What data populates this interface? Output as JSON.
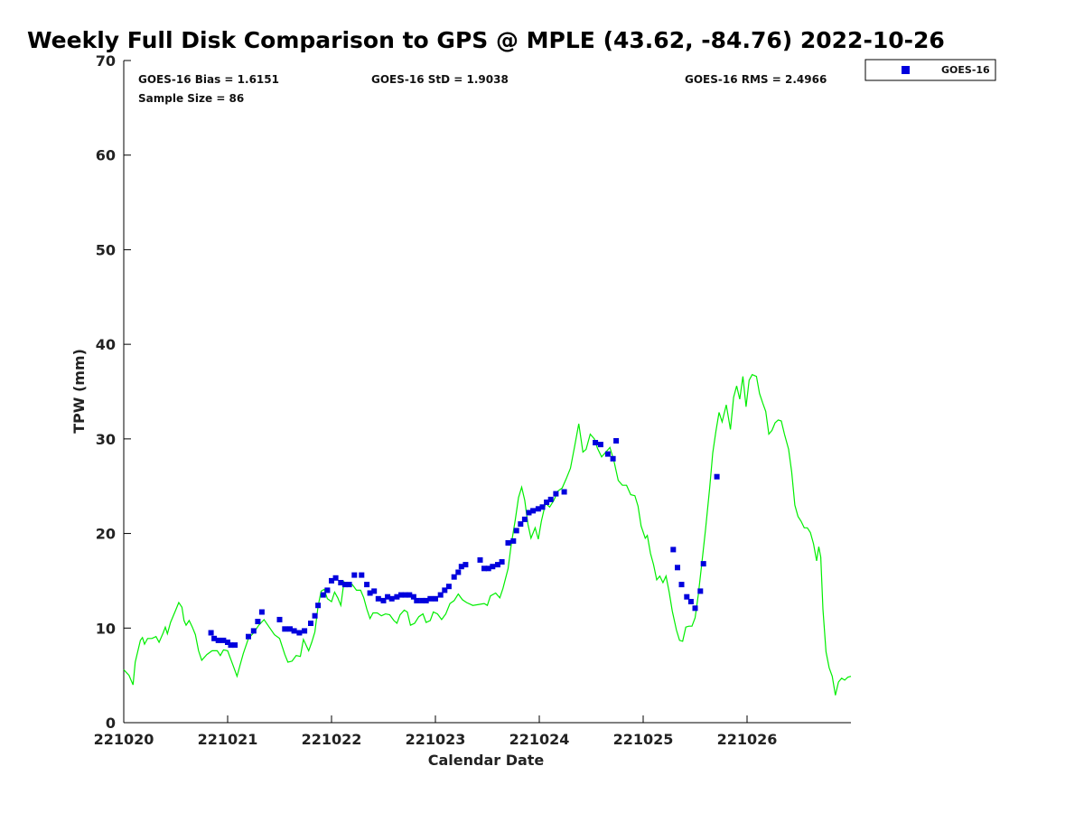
{
  "chart_data": {
    "type": "scatter",
    "title": "Weekly Full Disk Comparison to GPS @ MPLE (43.62, -84.76) 2022-10-26",
    "xlabel": "Calendar Date",
    "ylabel": "TPW (mm)",
    "xlim": [
      0,
      7
    ],
    "ylim": [
      0,
      70
    ],
    "x_ticks": [
      {
        "value": 0,
        "label": "221020"
      },
      {
        "value": 1,
        "label": "221021"
      },
      {
        "value": 2,
        "label": "221022"
      },
      {
        "value": 3,
        "label": "221023"
      },
      {
        "value": 4,
        "label": "221024"
      },
      {
        "value": 5,
        "label": "221025"
      },
      {
        "value": 6,
        "label": "221026"
      }
    ],
    "y_ticks": [
      0,
      10,
      20,
      30,
      40,
      50,
      60,
      70
    ],
    "grid": false,
    "legend": {
      "position": "top-right",
      "entries": [
        "GOES-16"
      ]
    },
    "stats": {
      "bias": "GOES-16 Bias = 1.6151",
      "std": "GOES-16 StD = 1.9038",
      "rms": "GOES-16 RMS = 2.4966",
      "sample_size": "Sample Size = 86"
    },
    "series": [
      {
        "name": "GOES-16",
        "kind": "scatter",
        "color": "#0000dd",
        "points": [
          [
            0.84,
            9.5
          ],
          [
            0.87,
            8.9
          ],
          [
            0.91,
            8.7
          ],
          [
            0.96,
            8.7
          ],
          [
            1.0,
            8.5
          ],
          [
            1.03,
            8.2
          ],
          [
            1.07,
            8.2
          ],
          [
            1.2,
            9.1
          ],
          [
            1.25,
            9.7
          ],
          [
            1.29,
            10.7
          ],
          [
            1.33,
            11.7
          ],
          [
            1.5,
            10.9
          ],
          [
            1.55,
            9.9
          ],
          [
            1.6,
            9.9
          ],
          [
            1.64,
            9.7
          ],
          [
            1.69,
            9.5
          ],
          [
            1.74,
            9.7
          ],
          [
            1.8,
            10.5
          ],
          [
            1.84,
            11.3
          ],
          [
            1.87,
            12.4
          ],
          [
            1.92,
            13.5
          ],
          [
            1.96,
            14.0
          ],
          [
            2.0,
            15.0
          ],
          [
            2.04,
            15.3
          ],
          [
            2.09,
            14.8
          ],
          [
            2.13,
            14.6
          ],
          [
            2.17,
            14.6
          ],
          [
            2.22,
            15.6
          ],
          [
            2.29,
            15.6
          ],
          [
            2.34,
            14.6
          ],
          [
            2.37,
            13.7
          ],
          [
            2.41,
            13.9
          ],
          [
            2.45,
            13.1
          ],
          [
            2.5,
            12.9
          ],
          [
            2.54,
            13.3
          ],
          [
            2.58,
            13.1
          ],
          [
            2.63,
            13.3
          ],
          [
            2.67,
            13.5
          ],
          [
            2.71,
            13.5
          ],
          [
            2.75,
            13.5
          ],
          [
            2.79,
            13.3
          ],
          [
            2.82,
            12.9
          ],
          [
            2.87,
            12.9
          ],
          [
            2.91,
            12.9
          ],
          [
            2.95,
            13.1
          ],
          [
            3.0,
            13.1
          ],
          [
            3.05,
            13.5
          ],
          [
            3.09,
            14.0
          ],
          [
            3.13,
            14.4
          ],
          [
            3.18,
            15.4
          ],
          [
            3.22,
            15.9
          ],
          [
            3.25,
            16.5
          ],
          [
            3.29,
            16.7
          ],
          [
            3.43,
            17.2
          ],
          [
            3.47,
            16.3
          ],
          [
            3.51,
            16.3
          ],
          [
            3.55,
            16.5
          ],
          [
            3.6,
            16.7
          ],
          [
            3.64,
            17.0
          ],
          [
            3.7,
            19.0
          ],
          [
            3.75,
            19.2
          ],
          [
            3.78,
            20.3
          ],
          [
            3.82,
            21.0
          ],
          [
            3.86,
            21.5
          ],
          [
            3.9,
            22.2
          ],
          [
            3.94,
            22.4
          ],
          [
            3.99,
            22.6
          ],
          [
            4.03,
            22.8
          ],
          [
            4.07,
            23.3
          ],
          [
            4.11,
            23.6
          ],
          [
            4.16,
            24.2
          ],
          [
            4.24,
            24.4
          ],
          [
            4.54,
            29.6
          ],
          [
            4.59,
            29.4
          ],
          [
            4.66,
            28.4
          ],
          [
            4.71,
            27.9
          ],
          [
            4.74,
            29.8
          ],
          [
            5.29,
            18.3
          ],
          [
            5.33,
            16.4
          ],
          [
            5.37,
            14.6
          ],
          [
            5.42,
            13.3
          ],
          [
            5.46,
            12.8
          ],
          [
            5.5,
            12.1
          ],
          [
            5.55,
            13.9
          ],
          [
            5.58,
            16.8
          ],
          [
            5.71,
            26.0
          ]
        ]
      },
      {
        "name": "GPS",
        "kind": "line",
        "color": "#00ee00",
        "points": [
          [
            0.0,
            5.6
          ],
          [
            0.05,
            5.0
          ],
          [
            0.09,
            4.0
          ],
          [
            0.11,
            6.4
          ],
          [
            0.16,
            8.7
          ],
          [
            0.18,
            9.0
          ],
          [
            0.2,
            8.3
          ],
          [
            0.23,
            8.9
          ],
          [
            0.27,
            8.9
          ],
          [
            0.31,
            9.1
          ],
          [
            0.34,
            8.5
          ],
          [
            0.38,
            9.5
          ],
          [
            0.4,
            10.1
          ],
          [
            0.42,
            9.4
          ],
          [
            0.45,
            10.6
          ],
          [
            0.5,
            11.9
          ],
          [
            0.53,
            12.7
          ],
          [
            0.56,
            12.2
          ],
          [
            0.58,
            10.8
          ],
          [
            0.6,
            10.3
          ],
          [
            0.63,
            10.8
          ],
          [
            0.66,
            10.1
          ],
          [
            0.69,
            9.3
          ],
          [
            0.72,
            7.6
          ],
          [
            0.75,
            6.6
          ],
          [
            0.8,
            7.2
          ],
          [
            0.85,
            7.6
          ],
          [
            0.9,
            7.6
          ],
          [
            0.93,
            7.1
          ],
          [
            0.96,
            7.7
          ],
          [
            1.0,
            7.6
          ],
          [
            1.05,
            6.1
          ],
          [
            1.09,
            4.9
          ],
          [
            1.12,
            6.1
          ],
          [
            1.15,
            7.3
          ],
          [
            1.2,
            8.9
          ],
          [
            1.25,
            9.5
          ],
          [
            1.3,
            10.3
          ],
          [
            1.35,
            10.9
          ],
          [
            1.4,
            10.1
          ],
          [
            1.45,
            9.3
          ],
          [
            1.5,
            8.9
          ],
          [
            1.55,
            7.2
          ],
          [
            1.58,
            6.4
          ],
          [
            1.62,
            6.5
          ],
          [
            1.66,
            7.1
          ],
          [
            1.7,
            7.0
          ],
          [
            1.73,
            8.8
          ],
          [
            1.78,
            7.6
          ],
          [
            1.81,
            8.5
          ],
          [
            1.84,
            9.6
          ],
          [
            1.87,
            12.3
          ],
          [
            1.9,
            13.9
          ],
          [
            1.93,
            14.1
          ],
          [
            1.96,
            13.1
          ],
          [
            2.0,
            12.8
          ],
          [
            2.03,
            13.8
          ],
          [
            2.06,
            13.2
          ],
          [
            2.09,
            12.4
          ],
          [
            2.12,
            14.9
          ],
          [
            2.16,
            14.4
          ],
          [
            2.2,
            14.6
          ],
          [
            2.24,
            14.0
          ],
          [
            2.28,
            14.0
          ],
          [
            2.31,
            13.2
          ],
          [
            2.34,
            12.0
          ],
          [
            2.37,
            11.0
          ],
          [
            2.4,
            11.6
          ],
          [
            2.44,
            11.6
          ],
          [
            2.48,
            11.3
          ],
          [
            2.52,
            11.5
          ],
          [
            2.56,
            11.4
          ],
          [
            2.6,
            10.8
          ],
          [
            2.63,
            10.5
          ],
          [
            2.66,
            11.4
          ],
          [
            2.7,
            11.9
          ],
          [
            2.73,
            11.7
          ],
          [
            2.76,
            10.3
          ],
          [
            2.8,
            10.5
          ],
          [
            2.84,
            11.2
          ],
          [
            2.88,
            11.5
          ],
          [
            2.91,
            10.6
          ],
          [
            2.95,
            10.8
          ],
          [
            2.98,
            11.7
          ],
          [
            3.02,
            11.5
          ],
          [
            3.06,
            10.9
          ],
          [
            3.1,
            11.5
          ],
          [
            3.14,
            12.6
          ],
          [
            3.18,
            12.9
          ],
          [
            3.22,
            13.6
          ],
          [
            3.26,
            13.0
          ],
          [
            3.3,
            12.7
          ],
          [
            3.36,
            12.4
          ],
          [
            3.42,
            12.5
          ],
          [
            3.47,
            12.6
          ],
          [
            3.5,
            12.4
          ],
          [
            3.53,
            13.4
          ],
          [
            3.58,
            13.7
          ],
          [
            3.62,
            13.2
          ],
          [
            3.65,
            14.2
          ],
          [
            3.7,
            16.3
          ],
          [
            3.73,
            18.8
          ],
          [
            3.77,
            21.5
          ],
          [
            3.8,
            23.8
          ],
          [
            3.83,
            24.9
          ],
          [
            3.86,
            23.5
          ],
          [
            3.89,
            21.0
          ],
          [
            3.92,
            19.5
          ],
          [
            3.96,
            20.6
          ],
          [
            3.99,
            19.4
          ],
          [
            4.02,
            21.3
          ],
          [
            4.06,
            23.2
          ],
          [
            4.1,
            22.8
          ],
          [
            4.14,
            23.5
          ],
          [
            4.18,
            24.5
          ],
          [
            4.22,
            24.8
          ],
          [
            4.26,
            25.8
          ],
          [
            4.3,
            26.9
          ],
          [
            4.34,
            29.2
          ],
          [
            4.38,
            31.6
          ],
          [
            4.42,
            28.6
          ],
          [
            4.45,
            28.9
          ],
          [
            4.49,
            30.5
          ],
          [
            4.53,
            30.0
          ],
          [
            4.56,
            29.0
          ],
          [
            4.6,
            28.1
          ],
          [
            4.64,
            28.6
          ],
          [
            4.68,
            29.1
          ],
          [
            4.72,
            27.6
          ],
          [
            4.76,
            25.6
          ],
          [
            4.8,
            25.1
          ],
          [
            4.84,
            25.1
          ],
          [
            4.88,
            24.1
          ],
          [
            4.92,
            24.0
          ],
          [
            4.95,
            22.9
          ],
          [
            4.98,
            20.8
          ],
          [
            5.02,
            19.5
          ],
          [
            5.04,
            19.8
          ],
          [
            5.07,
            17.9
          ],
          [
            5.1,
            16.7
          ],
          [
            5.13,
            15.1
          ],
          [
            5.16,
            15.5
          ],
          [
            5.19,
            14.8
          ],
          [
            5.22,
            15.5
          ],
          [
            5.25,
            13.8
          ],
          [
            5.28,
            11.8
          ],
          [
            5.32,
            9.8
          ],
          [
            5.35,
            8.7
          ],
          [
            5.38,
            8.6
          ],
          [
            5.41,
            10.1
          ],
          [
            5.44,
            10.2
          ],
          [
            5.47,
            10.2
          ],
          [
            5.5,
            11.1
          ],
          [
            5.53,
            13.5
          ],
          [
            5.56,
            16.4
          ],
          [
            5.6,
            20.4
          ],
          [
            5.64,
            24.8
          ],
          [
            5.67,
            28.5
          ],
          [
            5.7,
            30.8
          ],
          [
            5.73,
            32.8
          ],
          [
            5.76,
            31.8
          ],
          [
            5.8,
            33.6
          ],
          [
            5.84,
            31.0
          ],
          [
            5.87,
            34.4
          ],
          [
            5.9,
            35.6
          ],
          [
            5.93,
            34.2
          ],
          [
            5.96,
            36.6
          ],
          [
            5.99,
            33.4
          ],
          [
            6.02,
            36.2
          ],
          [
            6.05,
            36.8
          ],
          [
            6.09,
            36.6
          ],
          [
            6.12,
            34.8
          ],
          [
            6.15,
            33.8
          ],
          [
            6.18,
            32.9
          ],
          [
            6.21,
            30.5
          ],
          [
            6.24,
            30.9
          ],
          [
            6.27,
            31.7
          ],
          [
            6.3,
            32.0
          ],
          [
            6.33,
            31.9
          ],
          [
            6.36,
            30.5
          ],
          [
            6.4,
            28.9
          ],
          [
            6.43,
            26.5
          ],
          [
            6.46,
            23.0
          ],
          [
            6.49,
            21.8
          ],
          [
            6.52,
            21.3
          ],
          [
            6.55,
            20.6
          ],
          [
            6.58,
            20.6
          ],
          [
            6.61,
            20.1
          ],
          [
            6.64,
            18.9
          ],
          [
            6.67,
            17.1
          ],
          [
            6.69,
            18.6
          ],
          [
            6.71,
            17.5
          ],
          [
            6.73,
            12.0
          ],
          [
            6.76,
            7.5
          ],
          [
            6.79,
            5.8
          ],
          [
            6.82,
            4.9
          ],
          [
            6.85,
            2.9
          ],
          [
            6.88,
            4.3
          ],
          [
            6.91,
            4.7
          ],
          [
            6.94,
            4.5
          ],
          [
            6.97,
            4.8
          ],
          [
            7.0,
            4.9
          ]
        ]
      }
    ]
  }
}
